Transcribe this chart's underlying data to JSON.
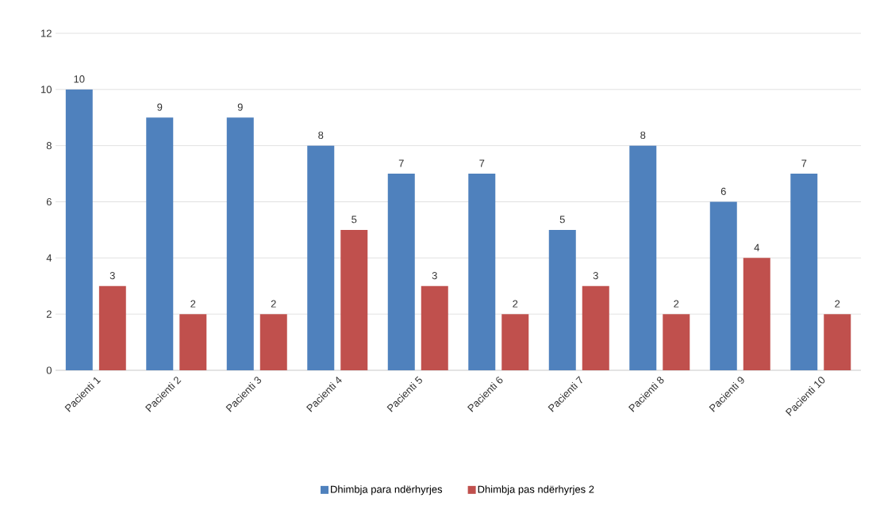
{
  "chart_data": {
    "type": "bar",
    "categories": [
      "Pacienti 1",
      "Pacienti 2",
      "Pacienti 3",
      "Pacienti 4",
      "Pacienti 5",
      "Pacienti 6",
      "Pacienti 7",
      "Pacienti 8",
      "Pacienti 9",
      "Pacienti 10"
    ],
    "series": [
      {
        "name": "Dhimbja para ndërhyrjes",
        "color": "#4f81bd",
        "values": [
          10,
          9,
          9,
          8,
          7,
          7,
          5,
          8,
          6,
          7
        ]
      },
      {
        "name": "Dhimbja pas ndërhyrjes 2",
        "color": "#c0504d",
        "values": [
          3,
          2,
          2,
          5,
          3,
          2,
          3,
          2,
          4,
          2
        ]
      }
    ],
    "ylim": [
      0,
      12
    ],
    "yticks": [
      0,
      2,
      4,
      6,
      8,
      10,
      12
    ],
    "grid": "y",
    "legend": "bottom",
    "data_labels": true
  }
}
